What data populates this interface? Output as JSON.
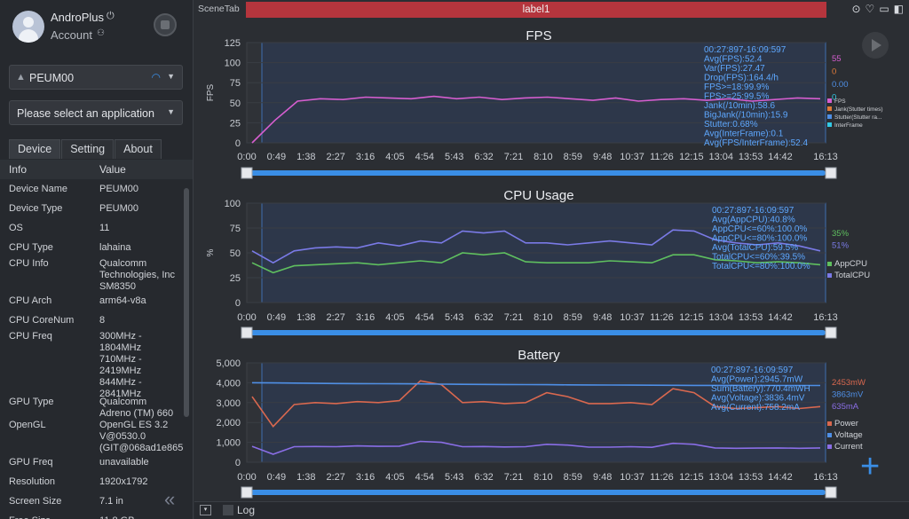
{
  "user": {
    "name": "AndroPlus",
    "account": "Account"
  },
  "device_select": {
    "value": "PEUM00"
  },
  "app_select": {
    "placeholder": "Please select an application"
  },
  "tabs": [
    "Device",
    "Setting",
    "About"
  ],
  "info_header": {
    "col1": "Info",
    "col2": "Value"
  },
  "info_rows": [
    {
      "k": "Device Name",
      "v": "PEUM00"
    },
    {
      "k": "Device Type",
      "v": "PEUM00"
    },
    {
      "k": "OS",
      "v": "11"
    },
    {
      "k": "CPU Type",
      "v": "lahaina"
    },
    {
      "k": "CPU Info",
      "v": "Qualcomm\nTechnologies, Inc\nSM8350"
    },
    {
      "k": "CPU Arch",
      "v": "arm64-v8a"
    },
    {
      "k": "CPU CoreNum",
      "v": "8"
    },
    {
      "k": "CPU Freq",
      "v": "300MHz -\n1804MHz\n710MHz -\n2419MHz\n844MHz -\n2841MHz"
    },
    {
      "k": "GPU Type",
      "v": "Qualcomm\nAdreno (TM) 660"
    },
    {
      "k": "OpenGL",
      "v": "OpenGL ES 3.2\nV@0530.0\n(GIT@068ad1e865"
    },
    {
      "k": "GPU Freq",
      "v": "unavailable"
    },
    {
      "k": "Resolution",
      "v": "1920x1792"
    },
    {
      "k": "Screen Size",
      "v": "7.1 in"
    },
    {
      "k": "Free Size",
      "v": "11.8 GB"
    }
  ],
  "topbar": {
    "scene_tab": "SceneTab",
    "label": "label1"
  },
  "bottom": {
    "log": "Log"
  },
  "time_ticks": [
    "0:00",
    "0:49",
    "1:38",
    "2:27",
    "3:16",
    "4:05",
    "4:54",
    "5:43",
    "6:32",
    "7:21",
    "8:10",
    "8:59",
    "9:48",
    "10:37",
    "11:26",
    "12:15",
    "13:04",
    "13:53",
    "14:42",
    "16:13"
  ],
  "chart_data": [
    {
      "type": "line",
      "title": "FPS",
      "ylabel": "FPS",
      "ylim": [
        0,
        125
      ],
      "yticks": [
        0,
        25,
        50,
        75,
        100,
        125
      ],
      "series": [
        {
          "name": "FPS",
          "color": "#d65ed0",
          "values": [
            0,
            28,
            52,
            55,
            54,
            57,
            56,
            55,
            58,
            55,
            57,
            54,
            56,
            57,
            55,
            53,
            56,
            52,
            54,
            55,
            53,
            55,
            52,
            54,
            56,
            55
          ]
        },
        {
          "name": "Jank(Stutter times)",
          "color": "#e07b39"
        },
        {
          "name": "Stutter(Stutter ra...",
          "color": "#4f8fe6"
        },
        {
          "name": "InterFrame",
          "color": "#33c9e6"
        }
      ],
      "stats": [
        "00:27:897-16:09:597",
        "Avg(FPS):52.4",
        "Var(FPS):27.47",
        "Drop(FPS):164.4/h",
        "FPS>=18:99.9%",
        "FPS>=25:99.5%",
        "Jank(/10min):58.6",
        "BigJank(/10min):15.9",
        "Stutter:0.68%",
        "Avg(InterFrame):0.1",
        "Avg(FPS/InterFrame):52.4"
      ],
      "current": [
        {
          "text": "55",
          "color": "#d65ed0"
        },
        {
          "text": "0",
          "color": "#e07b39"
        },
        {
          "text": "0.00",
          "color": "#4f8fe6"
        },
        {
          "text": "0",
          "color": "#33c9e6"
        }
      ]
    },
    {
      "type": "line",
      "title": "CPU Usage",
      "ylabel": "%",
      "ylim": [
        0,
        100
      ],
      "yticks": [
        0,
        25,
        50,
        75,
        100
      ],
      "series": [
        {
          "name": "AppCPU",
          "color": "#5fbf5f",
          "values": [
            40,
            30,
            37,
            38,
            39,
            40,
            38,
            40,
            42,
            40,
            50,
            48,
            50,
            41,
            40,
            40,
            40,
            42,
            41,
            40,
            48,
            48,
            43,
            42,
            40,
            41,
            40,
            38
          ]
        },
        {
          "name": "TotalCPU",
          "color": "#7a7ae6",
          "values": [
            52,
            40,
            52,
            55,
            56,
            55,
            60,
            57,
            62,
            60,
            72,
            70,
            72,
            60,
            60,
            58,
            60,
            62,
            60,
            58,
            73,
            72,
            63,
            60,
            58,
            60,
            57,
            52
          ]
        }
      ],
      "stats": [
        "00:27:897-16:09:597",
        "Avg(AppCPU):40.8%",
        "AppCPU<=60%:100.0%",
        "AppCPU<=80%:100.0%",
        "Avg(TotalCPU):59.5%",
        "TotalCPU<=60%:39.5%",
        "TotalCPU<=80%:100.0%"
      ],
      "current": [
        {
          "text": "35%",
          "color": "#5fbf5f"
        },
        {
          "text": "51%",
          "color": "#7a7ae6"
        }
      ]
    },
    {
      "type": "line",
      "title": "Battery",
      "ylim": [
        0,
        5000
      ],
      "yticks": [
        0,
        1000,
        2000,
        3000,
        4000,
        5000
      ],
      "ytick_labels": [
        "0",
        "1,000",
        "2,000",
        "3,000",
        "4,000",
        "5,000"
      ],
      "series": [
        {
          "name": "Power",
          "color": "#d9684f",
          "values": [
            3300,
            1800,
            2900,
            3000,
            2950,
            3050,
            3000,
            3100,
            4100,
            3900,
            3000,
            3050,
            2950,
            3000,
            3500,
            3300,
            2950,
            2950,
            3000,
            2900,
            3700,
            3500,
            2800,
            2700,
            2750,
            2800,
            2700,
            2800
          ]
        },
        {
          "name": "Voltage",
          "color": "#4f8fe6",
          "values": [
            4000,
            3990,
            3980,
            3970,
            3960,
            3955,
            3950,
            3945,
            3940,
            3930,
            3920,
            3915,
            3910,
            3905,
            3900,
            3895,
            3890,
            3885,
            3880,
            3875,
            3870,
            3868,
            3866,
            3864,
            3863,
            3863,
            3863,
            3863
          ]
        },
        {
          "name": "Current",
          "color": "#8a6ee6",
          "values": [
            800,
            400,
            780,
            790,
            780,
            820,
            800,
            810,
            1050,
            1000,
            780,
            790,
            770,
            780,
            900,
            860,
            760,
            760,
            780,
            750,
            950,
            900,
            720,
            700,
            710,
            720,
            700,
            720
          ]
        }
      ],
      "stats": [
        "00:27:897-16:09:597",
        "Avg(Power):2945.7mW",
        "Sum(Battery):770.4mWH",
        "Avg(Voltage):3836.4mV",
        "Avg(Current):758.2mA"
      ],
      "current": [
        {
          "text": "2453mW",
          "color": "#d9684f"
        },
        {
          "text": "3863mV",
          "color": "#4f8fe6"
        },
        {
          "text": "635mA",
          "color": "#8a6ee6"
        }
      ]
    }
  ]
}
